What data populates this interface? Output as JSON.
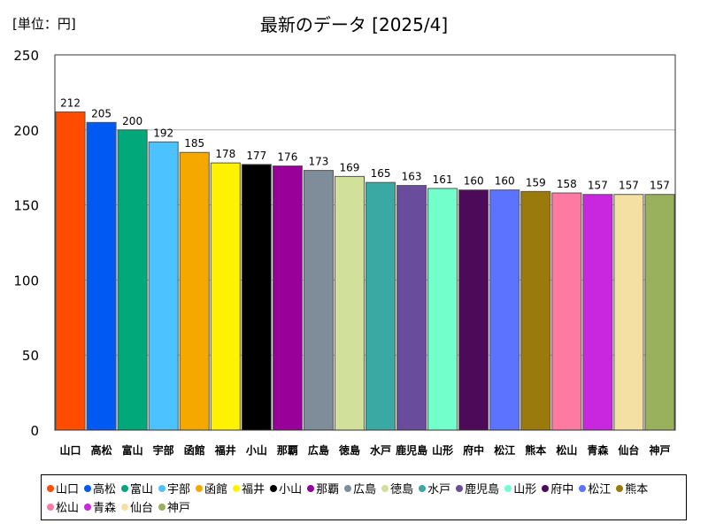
{
  "chart_data": {
    "type": "bar",
    "title": "最新のデータ [2025/4]",
    "unit_label": "[単位：円]",
    "xlabel": "",
    "ylabel": "",
    "ylim": [
      0,
      250
    ],
    "yticks": [
      "0",
      "50",
      "100",
      "150",
      "200",
      "250"
    ],
    "grid": true,
    "legend_position": "bottom",
    "categories": [
      "山口",
      "高松",
      "富山",
      "宇部",
      "函館",
      "福井",
      "小山",
      "那覇",
      "広島",
      "徳島",
      "水戸",
      "鹿児島",
      "山形",
      "府中",
      "松江",
      "熊本",
      "松山",
      "青森",
      "仙台",
      "神戸"
    ],
    "values": [
      212,
      205,
      200,
      192,
      185,
      178,
      177,
      176,
      173,
      169,
      165,
      163,
      161,
      160,
      160,
      159,
      158,
      157,
      157,
      157
    ],
    "colors": [
      "#ff4c00",
      "#0059f2",
      "#00a87a",
      "#4cc3ff",
      "#f5a800",
      "#fff200",
      "#000000",
      "#990099",
      "#7f8c99",
      "#d1e09a",
      "#3aa8a3",
      "#6a4c9c",
      "#73ffcc",
      "#4d0a59",
      "#5c73ff",
      "#997a0a",
      "#ff7aa3",
      "#c926e0",
      "#f5e0a3",
      "#99b05c"
    ]
  }
}
